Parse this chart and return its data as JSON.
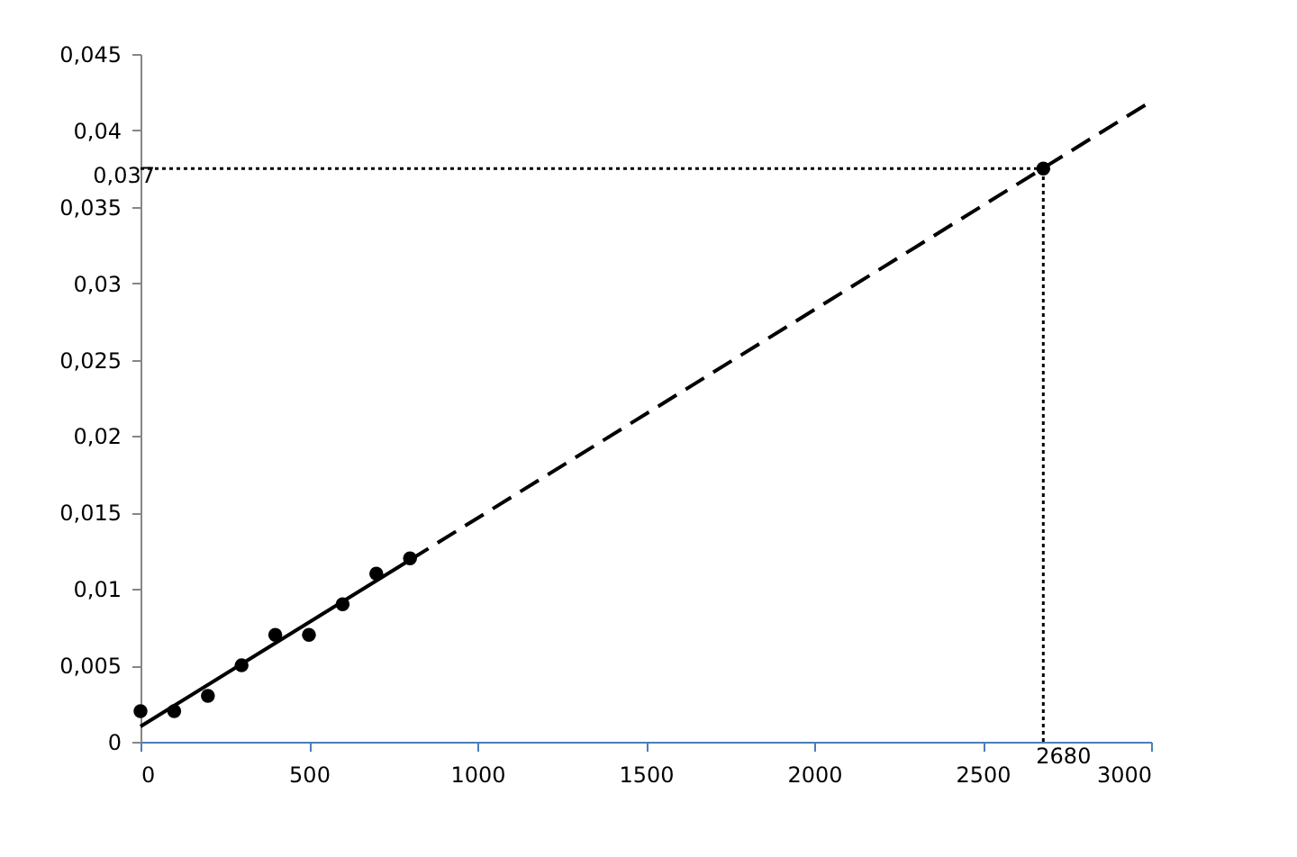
{
  "chart_data": {
    "type": "scatter",
    "xlim": [
      0,
      3000
    ],
    "xticks": [
      0,
      500,
      1000,
      1500,
      2000,
      2500,
      3000
    ],
    "ylim": [
      0,
      0.045
    ],
    "yticks": [
      0,
      {
        "value": 0.005,
        "label": "0,005"
      },
      {
        "value": 0.01,
        "label": "0,01"
      },
      {
        "value": 0.015,
        "label": "0,015"
      },
      {
        "value": 0.02,
        "label": "0,02"
      },
      {
        "value": 0.025,
        "label": "0,025"
      },
      {
        "value": 0.03,
        "label": "0,03"
      },
      {
        "value": 0.035,
        "label": "0,035"
      },
      {
        "value": 0.04,
        "label": "0,04"
      },
      {
        "value": 0.045,
        "label": "0,045"
      }
    ],
    "grid": false,
    "series": [
      {
        "type": "line",
        "line_style": "dotted",
        "marker": "none",
        "color": "#000000",
        "x": [
          0,
          2680
        ],
        "values": [
          0.0375,
          0.0375
        ]
      },
      {
        "type": "line",
        "line_style": "dotted",
        "marker": "none",
        "color": "#000000",
        "x": [
          2680,
          2680
        ],
        "values": [
          0,
          0.0375
        ]
      },
      {
        "type": "line",
        "line_style": "dashed",
        "marker": "none",
        "color": "#000000",
        "x": [
          800,
          3000
        ],
        "values": [
          0.0119,
          0.0419
        ]
      },
      {
        "type": "line",
        "line_style": "solid",
        "marker": "none",
        "color": "#000000",
        "x": [
          0,
          800
        ],
        "values": [
          0.001,
          0.0119
        ]
      },
      {
        "marker": "circle",
        "color": "#000000",
        "x": [
          0,
          100,
          200,
          300,
          400,
          500,
          600,
          700,
          800,
          2680
        ],
        "values": [
          0.002,
          0.002,
          0.003,
          0.005,
          0.007,
          0.007,
          0.009,
          0.011,
          0.012,
          0.0375
        ]
      }
    ],
    "annotations": [
      {
        "text": "0,037",
        "x": 0,
        "y": 0.0375
      },
      {
        "text": "2680",
        "x": 2680,
        "y": 0
      }
    ]
  }
}
